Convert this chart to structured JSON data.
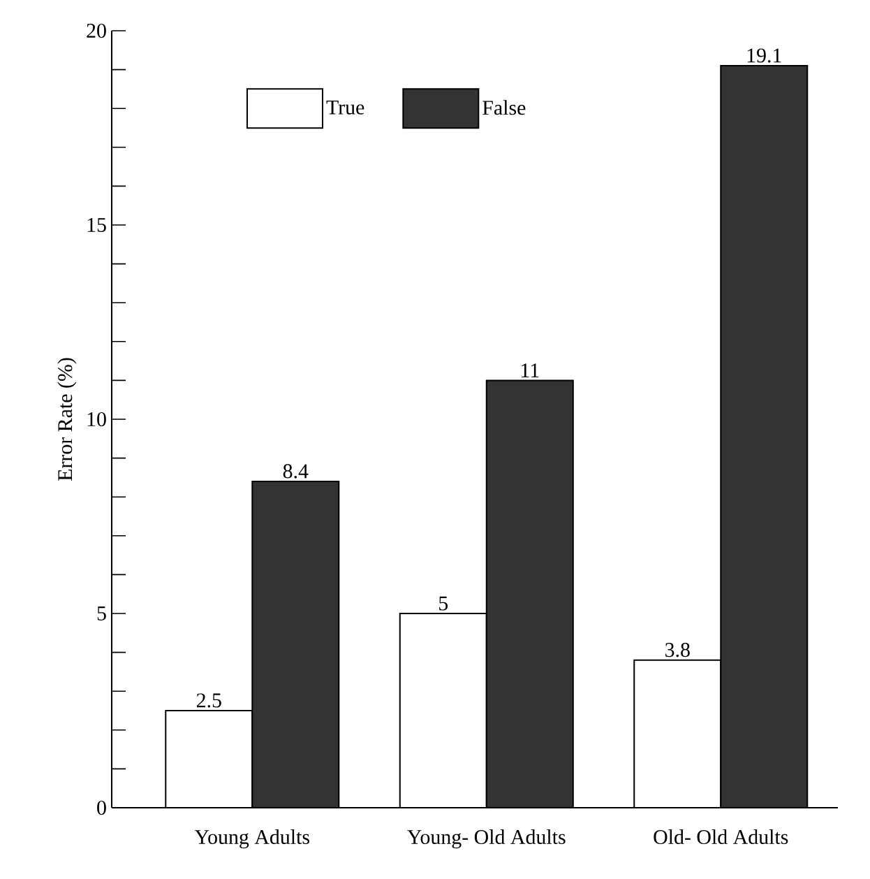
{
  "chart_data": {
    "type": "bar",
    "ylabel": "Error Rate (%)",
    "categories": [
      "Young Adults",
      "Young- Old Adults",
      "Old- Old Adults"
    ],
    "series": [
      {
        "name": "True",
        "color": "#ffffff",
        "values": [
          2.5,
          5,
          3.8
        ]
      },
      {
        "name": "False",
        "color": "#333333",
        "values": [
          8.4,
          11,
          19.1
        ]
      }
    ],
    "ylim": [
      0,
      20
    ],
    "yticks": [
      0,
      {
        "value": 1,
        "label": null
      },
      {
        "value": 2,
        "label": null
      },
      {
        "value": 3,
        "label": null
      },
      {
        "value": 4,
        "label": null
      },
      5,
      {
        "value": 6,
        "label": null
      },
      {
        "value": 7,
        "label": null
      },
      {
        "value": 8,
        "label": null
      },
      {
        "value": 9,
        "label": null
      },
      10,
      {
        "value": 11,
        "label": null
      },
      {
        "value": 12,
        "label": null
      },
      {
        "value": 13,
        "label": null
      },
      {
        "value": 14,
        "label": null
      },
      15,
      {
        "value": 16,
        "label": null
      },
      {
        "value": 17,
        "label": null
      },
      {
        "value": 18,
        "label": null
      },
      {
        "value": 19,
        "label": null
      },
      20
    ],
    "data_labels": true,
    "legend": "top",
    "grid": false
  }
}
